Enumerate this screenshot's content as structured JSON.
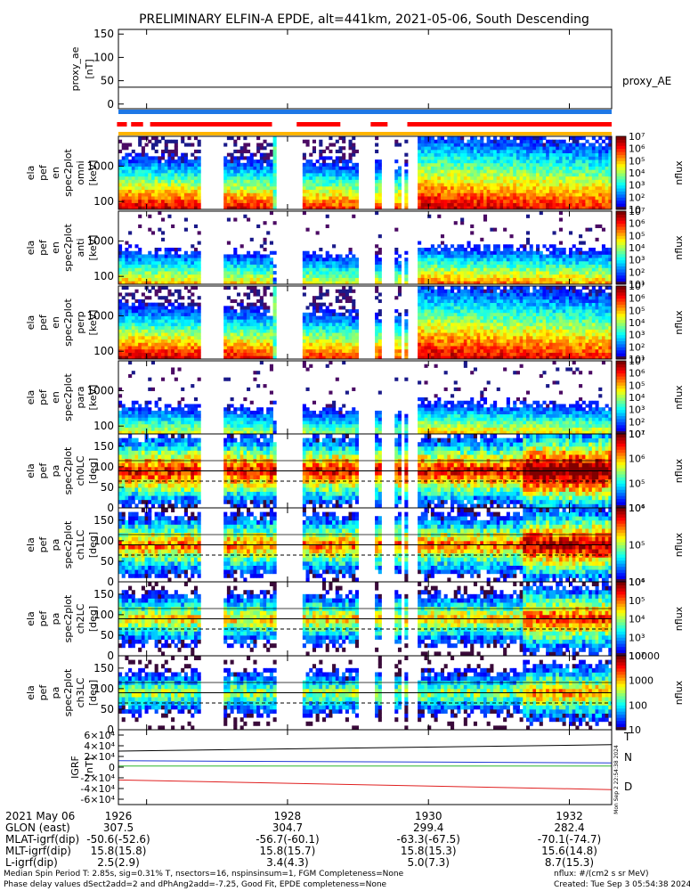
{
  "chart_data": {
    "type": "heatmap",
    "title": "PRELIMINARY ELFIN-A EPDE, alt=441km, 2021-05-06, South Descending",
    "x_range": [
      1925.6,
      1932.6
    ],
    "x_ticks": [
      "1926",
      "1928",
      "1930",
      "1932"
    ],
    "panels": [
      {
        "id": "proxy_ae",
        "ylabel": [
          "proxy_ae",
          "[nT]"
        ],
        "ylim": [
          -10,
          160
        ],
        "yticks": [
          "0",
          "50",
          "100",
          "150"
        ],
        "series_name": "proxy_AE",
        "line_value": 36
      },
      {
        "id": "flags",
        "labels": []
      },
      {
        "id": "spec_omni",
        "ylabel": [
          "ela",
          "pef",
          "en",
          "spec2plot",
          "omni",
          "[keV]"
        ],
        "yticks": [
          "100",
          "1000"
        ],
        "colorbar_label": "nflux",
        "cb_ticks": [
          "10",
          "10²",
          "10³",
          "10⁴",
          "10⁵",
          "10⁶",
          "10⁷"
        ]
      },
      {
        "id": "spec_anti",
        "ylabel": [
          "ela",
          "pef",
          "en",
          "spec2plot",
          "anti",
          "[keV]"
        ],
        "yticks": [
          "100",
          "1000"
        ],
        "colorbar_label": "nflux",
        "cb_ticks": [
          "10¹",
          "10²",
          "10³",
          "10⁴",
          "10⁵",
          "10⁶",
          "10⁷"
        ]
      },
      {
        "id": "spec_perp",
        "ylabel": [
          "ela",
          "pef",
          "en",
          "spec2plot",
          "perp",
          "[keV]"
        ],
        "yticks": [
          "100",
          "1000"
        ],
        "colorbar_label": "nflux",
        "cb_ticks": [
          "10¹",
          "10²",
          "10³",
          "10⁴",
          "10⁵",
          "10⁶",
          "10⁷"
        ]
      },
      {
        "id": "spec_para",
        "ylabel": [
          "ela",
          "pef",
          "en",
          "spec2plot",
          "para",
          "[keV]"
        ],
        "yticks": [
          "100",
          "1000"
        ],
        "colorbar_label": "nflux",
        "cb_ticks": [
          "10¹",
          "10²",
          "10³",
          "10⁴",
          "10⁵",
          "10⁶",
          "10⁷"
        ]
      },
      {
        "id": "pa_ch0",
        "ylabel": [
          "ela",
          "pef",
          "pa",
          "spec2plot",
          "ch0LC",
          "[deg]"
        ],
        "yticks": [
          "0",
          "50",
          "100",
          "150"
        ],
        "colorbar_label": "nflux",
        "cb_ticks": [
          "10⁴",
          "10⁵",
          "10⁶",
          "10⁷"
        ]
      },
      {
        "id": "pa_ch1",
        "ylabel": [
          "ela",
          "pef",
          "pa",
          "spec2plot",
          "ch1LC",
          "[deg]"
        ],
        "yticks": [
          "0",
          "50",
          "100",
          "150"
        ],
        "colorbar_label": "nflux",
        "cb_ticks": [
          "10⁴",
          "10⁵",
          "10⁶"
        ]
      },
      {
        "id": "pa_ch2",
        "ylabel": [
          "ela",
          "pef",
          "pa",
          "spec2plot",
          "ch2LC",
          "[deg]"
        ],
        "yticks": [
          "0",
          "50",
          "100",
          "150"
        ],
        "colorbar_label": "nflux",
        "cb_ticks": [
          "10²",
          "10³",
          "10⁴",
          "10⁵",
          "10⁶"
        ]
      },
      {
        "id": "pa_ch3",
        "ylabel": [
          "ela",
          "pef",
          "pa",
          "spec2plot",
          "ch3LC",
          "[deg]"
        ],
        "yticks": [
          "0",
          "50",
          "100",
          "150"
        ],
        "colorbar_label": "nflux",
        "cb_ticks": [
          "10",
          "100",
          "1000",
          "10000"
        ]
      },
      {
        "id": "igrf",
        "ylabel": [
          "IGRF",
          "[nT]"
        ],
        "yticks": [
          "-6×10⁴",
          "-4×10⁴",
          "-2×10⁴",
          "0",
          "2×10⁴",
          "4×10⁴",
          "6×10⁴"
        ],
        "legend": [
          "T",
          "N",
          "D"
        ],
        "stamp": "Mon Sep  2 22:54:38 2024"
      }
    ]
  },
  "ephemeris": {
    "rows": [
      {
        "label": "2021 May 06",
        "values": [
          "1926",
          "1928",
          "1930",
          "1932"
        ]
      },
      {
        "label": "GLON (east)",
        "values": [
          "307.5",
          "304.7",
          "299.4",
          "282.4"
        ]
      },
      {
        "label": "MLAT-igrf(dip)",
        "values": [
          "-50.6(-52.6)",
          "-56.7(-60.1)",
          "-63.3(-67.5)",
          "-70.1(-74.7)"
        ]
      },
      {
        "label": "MLT-igrf(dip)",
        "values": [
          "15.8(15.8)",
          "15.8(15.7)",
          "15.8(15.3)",
          "15.6(14.8)"
        ]
      },
      {
        "label": "L-igrf(dip)",
        "values": [
          "2.5(2.9)",
          "3.4(4.3)",
          "5.0(7.3)",
          "8.7(15.3)"
        ]
      }
    ]
  },
  "footer": {
    "line1": "Median Spin Period T: 2.85s, sig=0.31% T, nsectors=16, nspinsinsum=1, FGM Completeness=None",
    "line2": "Phase delay values dSect2add=2 and dPhAng2add=-7.25, Good Fit, EPDE completeness=None",
    "units": "nflux: #/(cm2 s sr MeV)",
    "created": "Created: Tue Sep  3 05:54:38 2024"
  }
}
